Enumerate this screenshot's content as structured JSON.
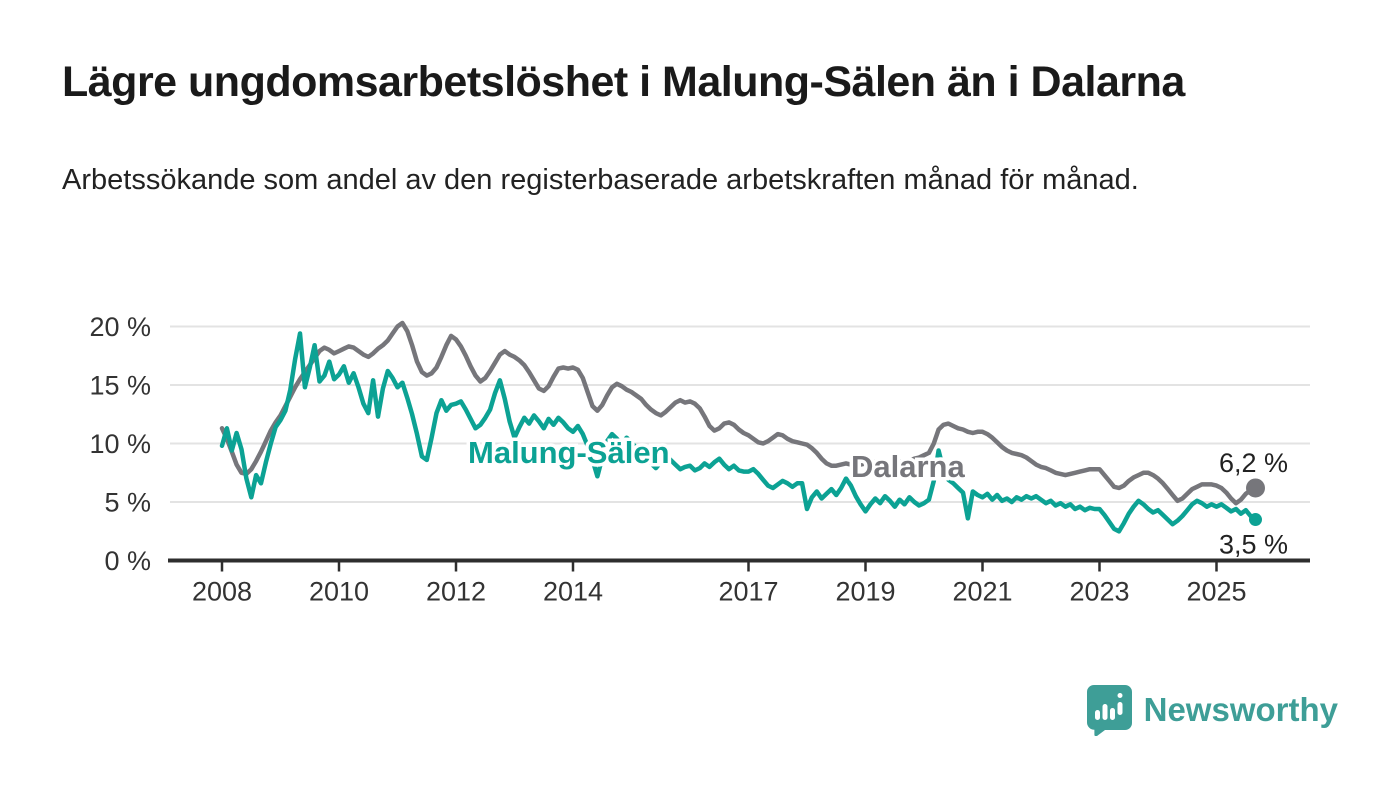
{
  "title": "Lägre ungdomsarbetslöshet i Malung-Sälen än i Dalarna",
  "subtitle": "Arbetssökande som andel av den registerbaserade arbetskraften månad för månad.",
  "branding": {
    "logo_text": "Newsworthy",
    "brand_color": "#3e9e97"
  },
  "colors": {
    "malung_salen_line": "#0ca294",
    "dalarna_line": "#76767b",
    "gridline": "#e3e3e3",
    "axis_line": "#2e2e2e",
    "tick_label": "#333333",
    "value_label": "#222222",
    "background": "#ffffff"
  },
  "chart_data": {
    "type": "line",
    "title": "Lägre ungdomsarbetslöshet i Malung-Sälen än i Dalarna",
    "subtitle": "Arbetssökande som andel av den registerbaserade arbetskraften månad för månad.",
    "unit": "%",
    "frequency": "monthly",
    "x_start": "2008-01",
    "x_end": "2025-09",
    "ylim": [
      0,
      21
    ],
    "grid": "horizontal-only",
    "legend_position": "inline-labels",
    "yticks": [
      {
        "value": 0,
        "label": "0 %"
      },
      {
        "value": 5,
        "label": "5 %"
      },
      {
        "value": 10,
        "label": "10 %"
      },
      {
        "value": 15,
        "label": "15 %"
      },
      {
        "value": 20,
        "label": "20 %"
      }
    ],
    "xticks": [
      2008,
      2010,
      2012,
      2014,
      2017,
      2019,
      2021,
      2023,
      2025
    ],
    "series": [
      {
        "name": "Dalarna",
        "color": "#76767b",
        "end_label": "6,2 %",
        "end_value": 6.2,
        "values": [
          11.3,
          10.4,
          9.3,
          8.2,
          7.5,
          7.4,
          7.8,
          8.5,
          9.3,
          10.2,
          11.1,
          11.8,
          12.4,
          13.2,
          14.0,
          14.8,
          15.5,
          16.1,
          16.7,
          17.3,
          17.9,
          18.2,
          18.0,
          17.7,
          17.9,
          18.1,
          18.3,
          18.2,
          17.9,
          17.6,
          17.4,
          17.7,
          18.1,
          18.4,
          18.8,
          19.4,
          20.0,
          20.3,
          19.6,
          18.4,
          17.0,
          16.1,
          15.8,
          16.0,
          16.5,
          17.4,
          18.4,
          19.2,
          18.9,
          18.3,
          17.5,
          16.6,
          15.8,
          15.3,
          15.6,
          16.2,
          16.9,
          17.6,
          17.9,
          17.6,
          17.4,
          17.1,
          16.7,
          16.1,
          15.4,
          14.7,
          14.5,
          14.9,
          15.7,
          16.4,
          16.5,
          16.4,
          16.5,
          16.3,
          15.6,
          14.4,
          13.2,
          12.8,
          13.3,
          14.1,
          14.8,
          15.1,
          14.9,
          14.6,
          14.4,
          14.1,
          13.8,
          13.3,
          12.9,
          12.6,
          12.4,
          12.7,
          13.1,
          13.5,
          13.7,
          13.5,
          13.6,
          13.4,
          13.0,
          12.3,
          11.5,
          11.1,
          11.3,
          11.7,
          11.8,
          11.6,
          11.2,
          10.9,
          10.7,
          10.4,
          10.1,
          10.0,
          10.2,
          10.5,
          10.8,
          10.7,
          10.4,
          10.2,
          10.1,
          10.0,
          9.9,
          9.6,
          9.2,
          8.7,
          8.3,
          8.1,
          8.1,
          8.2,
          8.3,
          8.2,
          8.1,
          8.2,
          8.3,
          8.5,
          8.4,
          8.2,
          8.1,
          8.3,
          8.6,
          8.5,
          8.4,
          8.5,
          8.7,
          8.8,
          9.0,
          9.2,
          10.0,
          11.2,
          11.6,
          11.7,
          11.5,
          11.3,
          11.2,
          11.0,
          10.9,
          11.0,
          11.0,
          10.8,
          10.5,
          10.1,
          9.7,
          9.4,
          9.2,
          9.1,
          9.0,
          8.8,
          8.5,
          8.2,
          8.0,
          7.9,
          7.7,
          7.5,
          7.4,
          7.3,
          7.4,
          7.5,
          7.6,
          7.7,
          7.8,
          7.8,
          7.8,
          7.3,
          6.8,
          6.3,
          6.2,
          6.4,
          6.8,
          7.1,
          7.3,
          7.5,
          7.5,
          7.3,
          7.0,
          6.6,
          6.1,
          5.6,
          5.1,
          5.3,
          5.7,
          6.1,
          6.3,
          6.5,
          6.5,
          6.5,
          6.4,
          6.2,
          5.8,
          5.3,
          4.9,
          5.2,
          5.7,
          6.0,
          6.2
        ]
      },
      {
        "name": "Malung-Sälen",
        "color": "#0ca294",
        "end_label": "3,5 %",
        "end_value": 3.5,
        "values": [
          9.8,
          11.3,
          9.4,
          10.9,
          9.5,
          7.0,
          5.4,
          7.3,
          6.6,
          8.4,
          10.0,
          11.4,
          12.0,
          12.8,
          14.6,
          17.2,
          19.4,
          14.8,
          16.5,
          18.4,
          15.3,
          15.8,
          17.0,
          15.5,
          15.9,
          16.6,
          15.2,
          16.0,
          14.8,
          13.4,
          12.6,
          15.4,
          12.3,
          14.7,
          16.2,
          15.6,
          14.8,
          15.2,
          13.9,
          12.5,
          10.8,
          8.9,
          8.6,
          10.5,
          12.6,
          13.7,
          12.8,
          13.3,
          13.4,
          13.6,
          12.9,
          12.1,
          11.3,
          11.6,
          12.2,
          12.9,
          14.3,
          15.4,
          13.8,
          11.9,
          10.5,
          11.4,
          12.2,
          11.7,
          12.4,
          11.9,
          11.3,
          12.1,
          11.6,
          12.2,
          11.8,
          11.3,
          11.0,
          11.5,
          10.8,
          9.8,
          8.6,
          7.2,
          8.8,
          10.2,
          10.8,
          10.4,
          9.9,
          10.5,
          10.1,
          9.6,
          9.2,
          8.7,
          8.3,
          7.9,
          8.4,
          9.0,
          8.6,
          8.2,
          7.8,
          8.0,
          8.1,
          7.7,
          7.9,
          8.3,
          8.0,
          8.4,
          8.7,
          8.2,
          7.8,
          8.1,
          7.7,
          7.6,
          7.6,
          7.8,
          7.4,
          6.9,
          6.4,
          6.2,
          6.5,
          6.8,
          6.6,
          6.3,
          6.6,
          6.6,
          4.4,
          5.4,
          5.9,
          5.3,
          5.7,
          6.1,
          5.6,
          6.2,
          7.0,
          6.4,
          5.5,
          4.8,
          4.2,
          4.8,
          5.3,
          4.9,
          5.5,
          5.1,
          4.6,
          5.2,
          4.8,
          5.4,
          5.0,
          4.7,
          4.9,
          5.2,
          6.8,
          9.4,
          7.7,
          6.9,
          6.6,
          6.2,
          5.8,
          3.6,
          5.9,
          5.6,
          5.4,
          5.7,
          5.2,
          5.6,
          5.1,
          5.3,
          5.0,
          5.4,
          5.2,
          5.5,
          5.3,
          5.5,
          5.2,
          4.9,
          5.1,
          4.7,
          4.9,
          4.6,
          4.8,
          4.4,
          4.6,
          4.3,
          4.5,
          4.4,
          4.4,
          3.9,
          3.3,
          2.7,
          2.5,
          3.2,
          4.0,
          4.6,
          5.1,
          4.8,
          4.4,
          4.1,
          4.3,
          3.9,
          3.5,
          3.1,
          3.4,
          3.8,
          4.3,
          4.8,
          5.1,
          4.9,
          4.6,
          4.8,
          4.6,
          4.8,
          4.5,
          4.2,
          4.4,
          4.0,
          4.3,
          3.8,
          3.5
        ]
      }
    ]
  }
}
